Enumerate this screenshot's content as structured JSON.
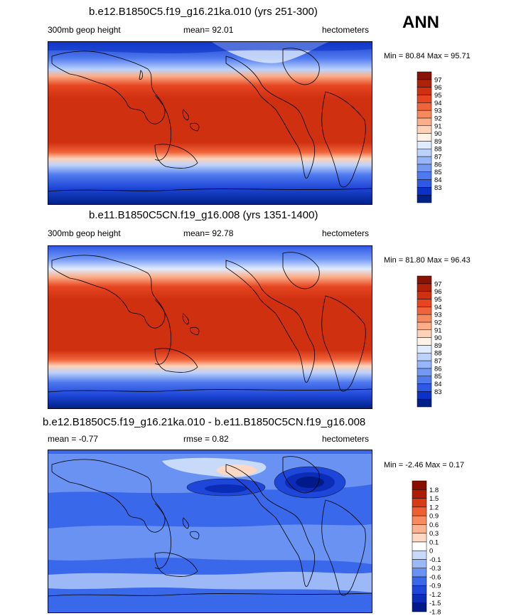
{
  "season_label": "ANN",
  "colors": {
    "panel12": [
      "#002288",
      "#0a32c8",
      "#2e59e6",
      "#4f79ef",
      "#7399f5",
      "#97b6f9",
      "#bcd2fb",
      "#e0ebfd",
      "#fff2e6",
      "#fdd2b8",
      "#fbae88",
      "#f78a5c",
      "#f0643a",
      "#e64520",
      "#cf3010",
      "#b02208",
      "#8a1204"
    ],
    "diff12": [
      "#001a8a",
      "#0a2cb6",
      "#1e46d8",
      "#3a68ea",
      "#6a92f2",
      "#9cb8f7",
      "#c8daf9",
      "#ffffff",
      "#fdd8c4",
      "#fbb492",
      "#f78a5e",
      "#ee5f32",
      "#d83a14",
      "#ae1c06",
      "#8a0d02"
    ]
  },
  "panels": [
    {
      "title": "b.e12.B1850C5.f19_g16.21ka.010 (yrs 251-300)",
      "left_label": "300mb geop height",
      "center_label": "mean=  92.01",
      "right_label": "hectometers",
      "minmax": "Min =  80.84 Max =  95.71",
      "colorbar_labels": [
        "97",
        "96",
        "95",
        "94",
        "93",
        "92",
        "91",
        "90",
        "89",
        "88",
        "87",
        "86",
        "85",
        "84",
        "83"
      ]
    },
    {
      "title": "b.e11.B1850C5CN.f19_g16.008 (yrs 1351-1400)",
      "left_label": "300mb geop height",
      "center_label": "mean=  92.78",
      "right_label": "hectometers",
      "minmax": "Min =  81.80 Max =  96.43",
      "colorbar_labels": [
        "97",
        "96",
        "95",
        "94",
        "93",
        "92",
        "91",
        "90",
        "89",
        "88",
        "87",
        "86",
        "85",
        "84",
        "83"
      ]
    },
    {
      "title": "b.e12.B1850C5.f19_g16.21ka.010 - b.e11.B1850C5CN.f19_g16.008",
      "left_label": "mean =  -0.77",
      "center_label": "rmse =   0.82",
      "right_label": "hectometers",
      "minmax": "Min =  -2.46 Max =   0.17",
      "colorbar_labels": [
        "1.8",
        "1.5",
        "1.2",
        "0.9",
        "0.6",
        "0.3",
        "0.1",
        "0",
        "-0.1",
        "-0.3",
        "-0.6",
        "-0.9",
        "-1.2",
        "-1.5",
        "-1.8"
      ]
    }
  ]
}
